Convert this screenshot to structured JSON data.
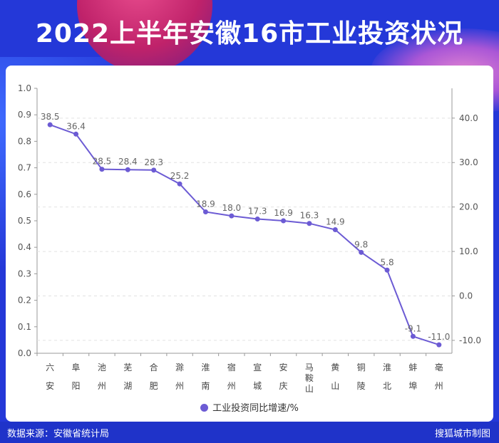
{
  "title": "2022上半年安徽16市工业投资状况",
  "footer": {
    "source": "数据来源：安徽省统计局",
    "brand": "搜狐城市制图"
  },
  "colors": {
    "background": "#2438d8",
    "line": "#6c5bd4",
    "panel": "#ffffff"
  },
  "chart_data": {
    "type": "line",
    "title": "2022上半年安徽16市工业投资状况",
    "categories": [
      [
        "六",
        "安"
      ],
      [
        "阜",
        "阳"
      ],
      [
        "池",
        "州"
      ],
      [
        "芜",
        "湖"
      ],
      [
        "合",
        "肥"
      ],
      [
        "滁",
        "州"
      ],
      [
        "淮",
        "南"
      ],
      [
        "宿",
        "州"
      ],
      [
        "宣",
        "城"
      ],
      [
        "安",
        "庆"
      ],
      [
        "马",
        "鞍",
        "山"
      ],
      [
        "黄",
        "山"
      ],
      [
        "铜",
        "陵"
      ],
      [
        "淮",
        "北"
      ],
      [
        "蚌",
        "埠"
      ],
      [
        "亳",
        "州"
      ]
    ],
    "series": [
      {
        "name": "工业投资同比增速/%",
        "values": [
          38.5,
          36.4,
          28.5,
          28.4,
          28.3,
          25.2,
          18.9,
          18.0,
          17.3,
          16.9,
          16.3,
          14.9,
          9.8,
          5.8,
          -9.1,
          -11.0
        ],
        "labels": [
          "38.5",
          "36.4",
          "28.5",
          "28.4",
          "28.3",
          "25.2",
          "18.9",
          "18.0",
          "17.3",
          "16.9",
          "16.3",
          "14.9",
          "9.8",
          "5.8",
          "-9.1",
          "-11.0"
        ]
      }
    ],
    "left_axis": {
      "ylim": [
        0,
        1.0
      ],
      "ticks": [
        "0.0",
        "0.1",
        "0.2",
        "0.3",
        "0.4",
        "0.5",
        "0.6",
        "0.7",
        "0.8",
        "0.9",
        "1.0"
      ]
    },
    "right_axis": {
      "ylim": [
        -12.9,
        46.7
      ],
      "tick_values": [
        -10,
        0,
        10,
        20,
        30,
        40
      ],
      "ticks": [
        "-10.0",
        "0.0",
        "10.0",
        "20.0",
        "30.0",
        "40.0"
      ]
    },
    "grid": true,
    "legend_position": "bottom-center"
  }
}
